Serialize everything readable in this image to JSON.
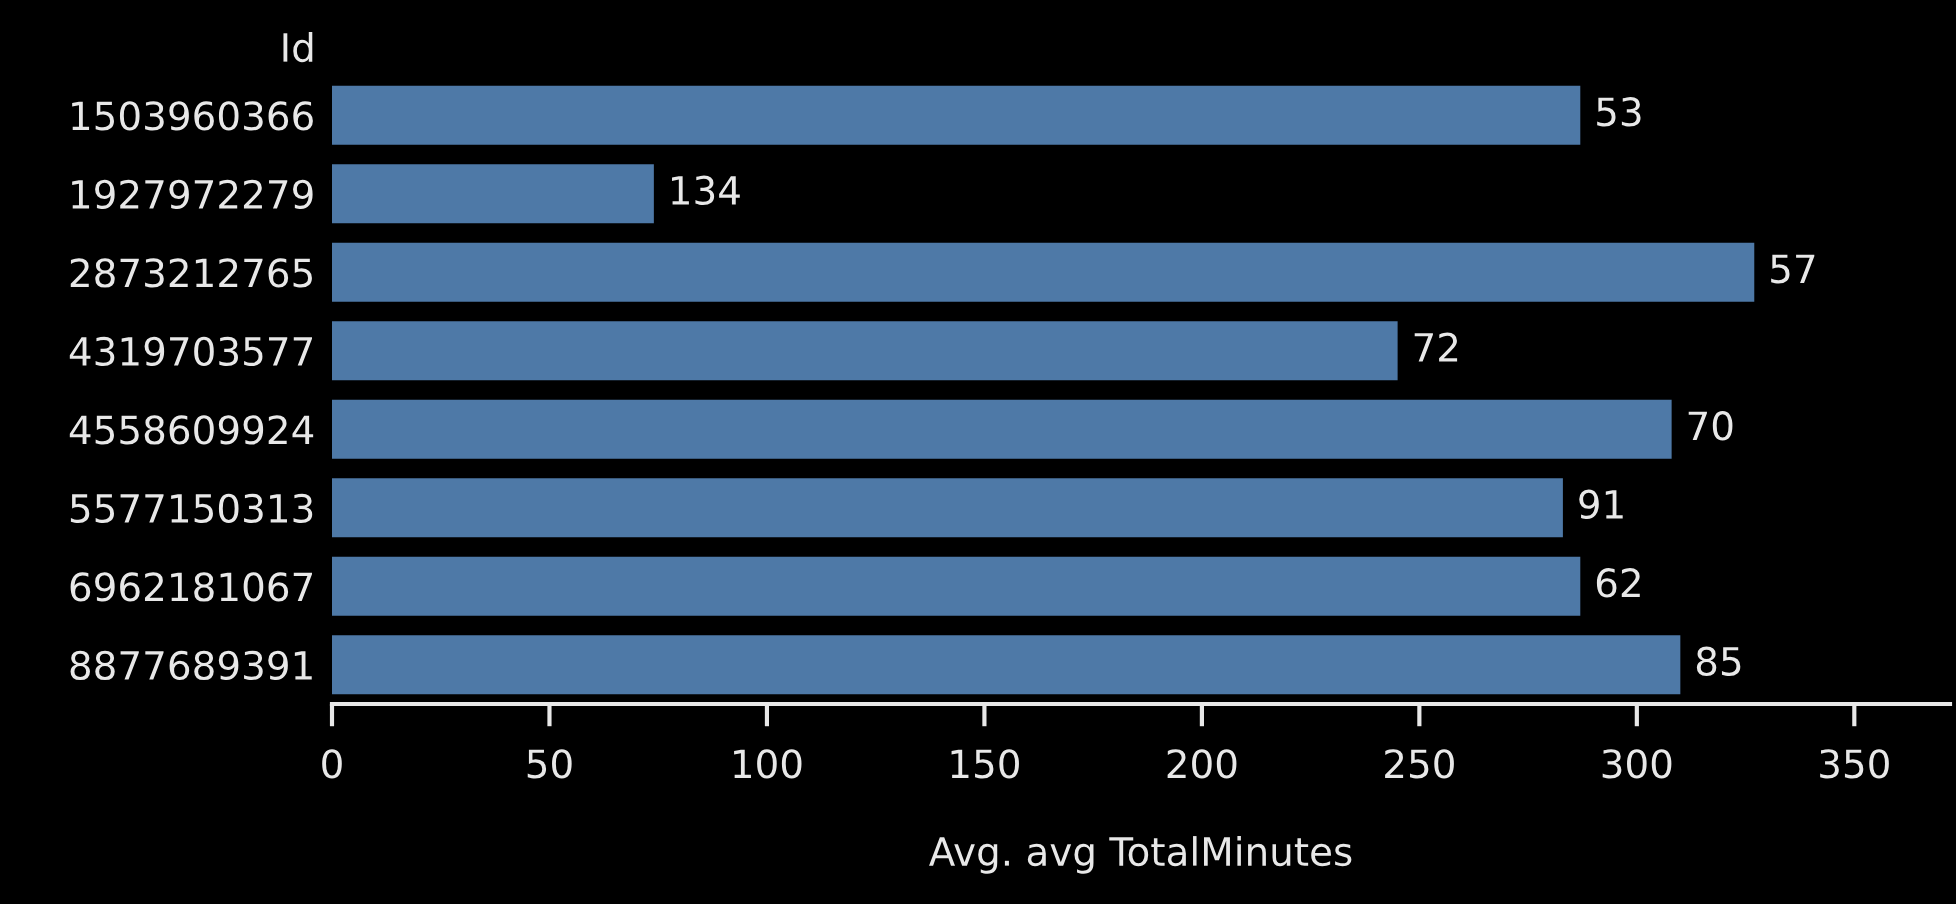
{
  "chart_data": {
    "type": "bar",
    "orientation": "horizontal",
    "ylabel": "Id",
    "xlabel": "Avg. avg TotalMinutes",
    "categories": [
      "1503960366",
      "1927972279",
      "2873212765",
      "4319703577",
      "4558609924",
      "5577150313",
      "6962181067",
      "8877689391"
    ],
    "values": [
      287,
      74,
      327,
      245,
      308,
      283,
      287,
      310
    ],
    "annotations": [
      {
        "text": "53",
        "x": 287,
        "y": "1503960366"
      },
      {
        "text": "134",
        "x": 74,
        "y": "1927972279"
      },
      {
        "text": "57",
        "x": 327,
        "y": "2873212765"
      },
      {
        "text": "72",
        "x": 245,
        "y": "4319703577"
      },
      {
        "text": "70",
        "x": 308,
        "y": "4558609924"
      },
      {
        "text": "91",
        "x": 283,
        "y": "5577150313"
      },
      {
        "text": "62",
        "x": 287,
        "y": "6962181067"
      },
      {
        "text": "85",
        "x": 310,
        "y": "8877689391"
      }
    ],
    "color": "#4e79a7",
    "xlim": [
      0,
      372
    ],
    "xticks": [
      0,
      50,
      100,
      150,
      200,
      250,
      300,
      350
    ],
    "grid": false
  }
}
